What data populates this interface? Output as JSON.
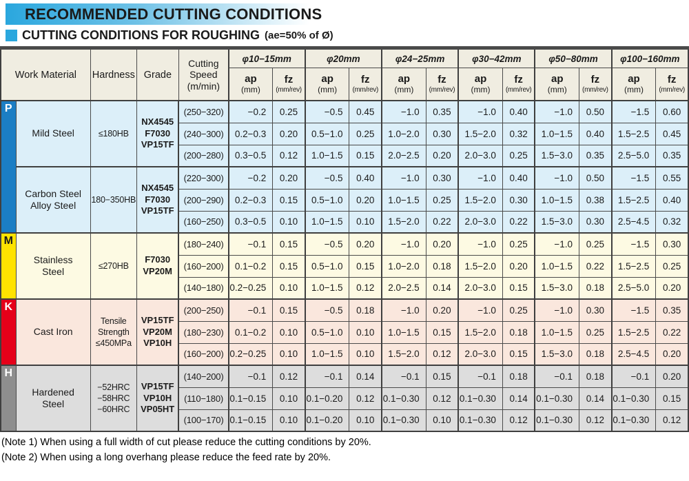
{
  "title": "RECOMMENDED CUTTING CONDITIONS",
  "subtitle": {
    "main": "CUTTING CONDITIONS FOR ROUGHING",
    "suffix": "(ae=50% of Ø)"
  },
  "colors": {
    "accent_blue": "#2AA7DE",
    "header_bg": "#F0EDE1",
    "border_dark": "#3F3F3F",
    "band_p": "#1B7EC4",
    "band_m": "#FFE300",
    "band_k": "#E50019",
    "band_h": "#8E8E8E",
    "row_p_bg": "#DCEFF9",
    "row_m_bg": "#FDFAE3",
    "row_k_bg": "#FAE7DD",
    "row_h_bg": "#DDDDDD"
  },
  "table": {
    "corner_headers": [
      "Work Material",
      "Hardness",
      "Grade",
      "Cutting\nSpeed\n(m/min)"
    ],
    "diameter_groups": [
      "φ10−15mm",
      "φ20mm",
      "φ24−25mm",
      "φ30−42mm",
      "φ50−80mm",
      "φ100−160mm"
    ],
    "sub_headers": {
      "ap": "ap",
      "ap_unit": "(mm)",
      "fz": "fz",
      "fz_unit": "(mm/rev)"
    },
    "bands": [
      {
        "letter": "P",
        "band_color": "#1B7EC4",
        "letter_color": "#FFFFFF",
        "row_bg": "#DCEFF9",
        "materials": [
          {
            "name": "Mild Steel",
            "hardness": "≤180HB",
            "grade": "NX4545\nF7030\nVP15TF",
            "rows": [
              {
                "speed": "(250−320)",
                "values": [
                  "−0.2",
                  "0.25",
                  "−0.5",
                  "0.45",
                  "−1.0",
                  "0.35",
                  "−1.0",
                  "0.40",
                  "−1.0",
                  "0.50",
                  "−1.5",
                  "0.60"
                ]
              },
              {
                "speed": "(240−300)",
                "values": [
                  "0.2−0.3",
                  "0.20",
                  "0.5−1.0",
                  "0.25",
                  "1.0−2.0",
                  "0.30",
                  "1.5−2.0",
                  "0.32",
                  "1.0−1.5",
                  "0.40",
                  "1.5−2.5",
                  "0.45"
                ]
              },
              {
                "speed": "(200−280)",
                "values": [
                  "0.3−0.5",
                  "0.12",
                  "1.0−1.5",
                  "0.15",
                  "2.0−2.5",
                  "0.20",
                  "2.0−3.0",
                  "0.25",
                  "1.5−3.0",
                  "0.35",
                  "2.5−5.0",
                  "0.35"
                ]
              }
            ]
          },
          {
            "name": "Carbon Steel\nAlloy Steel",
            "hardness": "180−350HB",
            "grade": "NX4545\nF7030\nVP15TF",
            "rows": [
              {
                "speed": "(220−300)",
                "values": [
                  "−0.2",
                  "0.20",
                  "−0.5",
                  "0.40",
                  "−1.0",
                  "0.30",
                  "−1.0",
                  "0.40",
                  "−1.0",
                  "0.50",
                  "−1.5",
                  "0.55"
                ]
              },
              {
                "speed": "(200−290)",
                "values": [
                  "0.2−0.3",
                  "0.15",
                  "0.5−1.0",
                  "0.20",
                  "1.0−1.5",
                  "0.25",
                  "1.5−2.0",
                  "0.30",
                  "1.0−1.5",
                  "0.38",
                  "1.5−2.5",
                  "0.40"
                ]
              },
              {
                "speed": "(160−250)",
                "values": [
                  "0.3−0.5",
                  "0.10",
                  "1.0−1.5",
                  "0.10",
                  "1.5−2.0",
                  "0.22",
                  "2.0−3.0",
                  "0.22",
                  "1.5−3.0",
                  "0.30",
                  "2.5−4.5",
                  "0.32"
                ]
              }
            ]
          }
        ]
      },
      {
        "letter": "M",
        "band_color": "#FFE300",
        "letter_color": "#1A1A1A",
        "row_bg": "#FDFAE3",
        "materials": [
          {
            "name": "Stainless\nSteel",
            "hardness": "≤270HB",
            "grade": "F7030\nVP20M",
            "rows": [
              {
                "speed": "(180−240)",
                "values": [
                  "−0.1",
                  "0.15",
                  "−0.5",
                  "0.20",
                  "−1.0",
                  "0.20",
                  "−1.0",
                  "0.25",
                  "−1.0",
                  "0.25",
                  "−1.5",
                  "0.30"
                ]
              },
              {
                "speed": "(160−200)",
                "values": [
                  "0.1−0.2",
                  "0.15",
                  "0.5−1.0",
                  "0.15",
                  "1.0−2.0",
                  "0.18",
                  "1.5−2.0",
                  "0.20",
                  "1.0−1.5",
                  "0.22",
                  "1.5−2.5",
                  "0.25"
                ]
              },
              {
                "speed": "(140−180)",
                "values": [
                  "0.2−0.25",
                  "0.10",
                  "1.0−1.5",
                  "0.12",
                  "2.0−2.5",
                  "0.14",
                  "2.0−3.0",
                  "0.15",
                  "1.5−3.0",
                  "0.18",
                  "2.5−5.0",
                  "0.20"
                ]
              }
            ]
          }
        ]
      },
      {
        "letter": "K",
        "band_color": "#E50019",
        "letter_color": "#FFFFFF",
        "row_bg": "#FAE7DD",
        "materials": [
          {
            "name": "Cast Iron",
            "hardness": "Tensile\nStrength\n≤450MPa",
            "grade": "VP15TF\nVP20M\nVP10H",
            "rows": [
              {
                "speed": "(200−250)",
                "values": [
                  "−0.1",
                  "0.15",
                  "−0.5",
                  "0.18",
                  "−1.0",
                  "0.20",
                  "−1.0",
                  "0.25",
                  "−1.0",
                  "0.30",
                  "−1.5",
                  "0.35"
                ]
              },
              {
                "speed": "(180−230)",
                "values": [
                  "0.1−0.2",
                  "0.10",
                  "0.5−1.0",
                  "0.10",
                  "1.0−1.5",
                  "0.15",
                  "1.5−2.0",
                  "0.18",
                  "1.0−1.5",
                  "0.25",
                  "1.5−2.5",
                  "0.22"
                ]
              },
              {
                "speed": "(160−200)",
                "values": [
                  "0.2−0.25",
                  "0.10",
                  "1.0−1.5",
                  "0.10",
                  "1.5−2.0",
                  "0.12",
                  "2.0−3.0",
                  "0.15",
                  "1.5−3.0",
                  "0.18",
                  "2.5−4.5",
                  "0.20"
                ]
              }
            ]
          }
        ]
      },
      {
        "letter": "H",
        "band_color": "#8E8E8E",
        "letter_color": "#FFFFFF",
        "row_bg": "#DDDDDD",
        "materials": [
          {
            "name": "Hardened\nSteel",
            "hardness": "−52HRC\n−58HRC\n−60HRC",
            "grade": "VP15TF\nVP10H\nVP05HT",
            "rows": [
              {
                "speed": "(140−200)",
                "values": [
                  "−0.1",
                  "0.12",
                  "−0.1",
                  "0.14",
                  "−0.1",
                  "0.15",
                  "−0.1",
                  "0.18",
                  "−0.1",
                  "0.18",
                  "−0.1",
                  "0.20"
                ]
              },
              {
                "speed": "(110−180)",
                "values": [
                  "0.1−0.15",
                  "0.10",
                  "0.1−0.20",
                  "0.12",
                  "0.1−0.30",
                  "0.12",
                  "0.1−0.30",
                  "0.14",
                  "0.1−0.30",
                  "0.14",
                  "0.1−0.30",
                  "0.15"
                ]
              },
              {
                "speed": "(100−170)",
                "values": [
                  "0.1−0.15",
                  "0.10",
                  "0.1−0.20",
                  "0.10",
                  "0.1−0.30",
                  "0.10",
                  "0.1−0.30",
                  "0.12",
                  "0.1−0.30",
                  "0.12",
                  "0.1−0.30",
                  "0.12"
                ]
              }
            ]
          }
        ]
      }
    ]
  },
  "notes": [
    "(Note 1) When using a full width of cut please reduce the cutting conditions by 20%.",
    "(Note 2) When using a long overhang please reduce the feed rate by 20%."
  ]
}
